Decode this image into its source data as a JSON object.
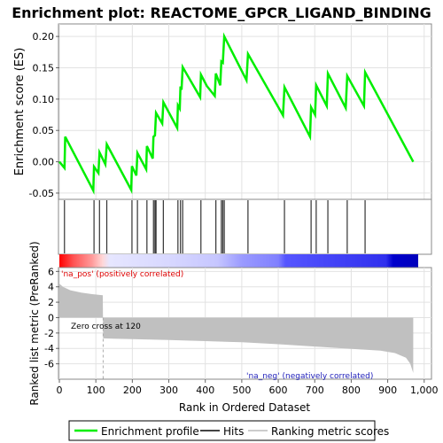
{
  "chart_data": [
    {
      "type": "line",
      "title": "Enrichment plot: REACTOME_GPCR_LIGAND_BINDING",
      "ylabel": "Enrichment score (ES)",
      "ylim": [
        -0.06,
        0.22
      ],
      "yticks": [
        -0.05,
        0.0,
        0.05,
        0.1,
        0.15,
        0.2
      ],
      "ytick_labels": [
        "-0.05",
        "0.00",
        "0.05",
        "0.10",
        "0.15",
        "0.20"
      ],
      "xlim": [
        0,
        1020
      ],
      "grid": true,
      "series": [
        {
          "name": "Enrichment profile",
          "color": "#00ee00",
          "points": [
            [
              0,
              0.0
            ],
            [
              14,
              -0.01
            ],
            [
              16,
              0.04
            ],
            [
              93,
              -0.046
            ],
            [
              95,
              -0.008
            ],
            [
              107,
              -0.018
            ],
            [
              110,
              0.015
            ],
            [
              126,
              -0.004
            ],
            [
              130,
              0.028
            ],
            [
              197,
              -0.045
            ],
            [
              199,
              -0.007
            ],
            [
              211,
              -0.022
            ],
            [
              214,
              0.014
            ],
            [
              238,
              -0.012
            ],
            [
              240,
              0.025
            ],
            [
              256,
              0.005
            ],
            [
              258,
              0.04
            ],
            [
              262,
              0.042
            ],
            [
              265,
              0.078
            ],
            [
              282,
              0.061
            ],
            [
              285,
              0.095
            ],
            [
              323,
              0.054
            ],
            [
              325,
              0.09
            ],
            [
              330,
              0.085
            ],
            [
              332,
              0.12
            ],
            [
              335,
              0.115
            ],
            [
              338,
              0.151
            ],
            [
              386,
              0.103
            ],
            [
              388,
              0.139
            ],
            [
              404,
              0.121
            ],
            [
              426,
              0.105
            ],
            [
              429,
              0.141
            ],
            [
              441,
              0.122
            ],
            [
              444,
              0.16
            ],
            [
              448,
              0.158
            ],
            [
              452,
              0.2
            ],
            [
              513,
              0.13
            ],
            [
              517,
              0.172
            ],
            [
              613,
              0.074
            ],
            [
              617,
              0.119
            ],
            [
              687,
              0.04
            ],
            [
              690,
              0.087
            ],
            [
              701,
              0.075
            ],
            [
              704,
              0.122
            ],
            [
              733,
              0.089
            ],
            [
              736,
              0.141
            ],
            [
              785,
              0.086
            ],
            [
              789,
              0.137
            ],
            [
              835,
              0.089
            ],
            [
              838,
              0.143
            ],
            [
              970,
              0.0
            ]
          ]
        }
      ]
    },
    {
      "type": "hits",
      "legend_label": "Hits",
      "hit_positions": [
        14,
        95,
        110,
        130,
        199,
        214,
        240,
        258,
        262,
        265,
        285,
        325,
        332,
        338,
        388,
        429,
        444,
        448,
        452,
        517,
        617,
        690,
        704,
        736,
        789,
        838
      ],
      "xlim": [
        0,
        1020
      ]
    },
    {
      "type": "area",
      "ylabel": "Ranked list metric (PreRanked)",
      "xlabel": "Rank in Ordered Dataset",
      "legend_label": "Ranking metric scores",
      "ylim": [
        -8,
        6.5
      ],
      "yticks": [
        -6,
        -4,
        -2,
        0,
        2,
        4,
        6
      ],
      "ytick_labels": [
        "-6",
        "-4",
        "-2",
        "0",
        "2",
        "4",
        "6"
      ],
      "xticks": [
        0,
        100,
        200,
        300,
        400,
        500,
        600,
        700,
        800,
        900,
        1000
      ],
      "xtick_labels": [
        "0",
        "100",
        "200",
        "300",
        "400",
        "500",
        "600",
        "700",
        "800",
        "900",
        "1,000"
      ],
      "xlim": [
        0,
        1020
      ],
      "fill_color": "#c0c0c0",
      "curve": [
        [
          0,
          4.4
        ],
        [
          10,
          4.0
        ],
        [
          30,
          3.55
        ],
        [
          60,
          3.25
        ],
        [
          90,
          3.05
        ],
        [
          119,
          2.9
        ],
        [
          120,
          -2.7
        ],
        [
          200,
          -2.8
        ],
        [
          300,
          -2.9
        ],
        [
          400,
          -3.05
        ],
        [
          500,
          -3.2
        ],
        [
          600,
          -3.45
        ],
        [
          700,
          -3.75
        ],
        [
          800,
          -4.05
        ],
        [
          880,
          -4.3
        ],
        [
          920,
          -4.6
        ],
        [
          950,
          -5.2
        ],
        [
          962,
          -6.0
        ],
        [
          970,
          -7.2
        ]
      ],
      "zero_cross_label": "Zero cross at 120",
      "zero_cross_rank": 120,
      "pos_label": "'na_pos' (positively correlated)",
      "neg_label": "'na_neg' (negatively correlated)",
      "pos_label_color": "#dd0000",
      "neg_label_color": "#2222bb"
    }
  ],
  "legend": {
    "items": [
      {
        "label": "Enrichment profile",
        "color": "#00ee00"
      },
      {
        "label": "Hits",
        "color": "#444444"
      },
      {
        "label": "Ranking metric scores",
        "color": "#cccccc"
      }
    ]
  }
}
